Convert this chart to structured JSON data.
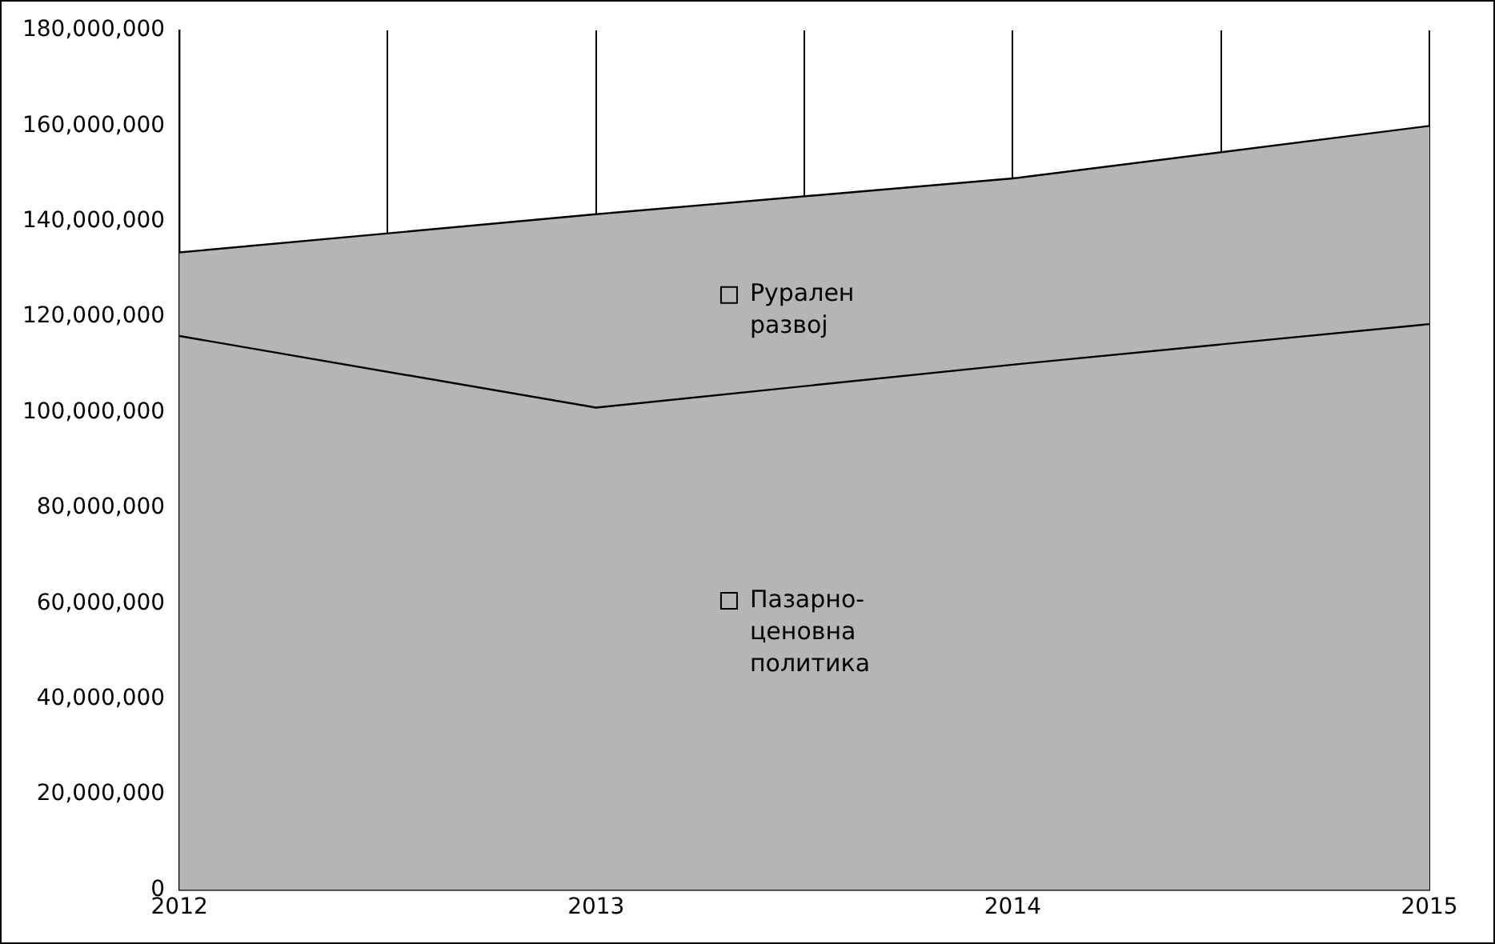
{
  "chart_data": {
    "type": "area",
    "stacked": true,
    "grid": "x",
    "legend": "center",
    "x": [
      2012,
      2013,
      2014,
      2015
    ],
    "xlim": [
      2012,
      2015
    ],
    "xticks": [
      2012,
      {
        "value": 2012.5,
        "label": null
      },
      2013,
      {
        "value": 2013.5,
        "label": null
      },
      2014,
      {
        "value": 2014.5,
        "label": null
      },
      2015
    ],
    "ylim": [
      0,
      180000000
    ],
    "yticks": [
      {
        "value": 0,
        "label": "0"
      },
      {
        "value": 20000000,
        "label": "20,000,000"
      },
      {
        "value": 40000000,
        "label": "40,000,000"
      },
      {
        "value": 60000000,
        "label": "60,000,000"
      },
      {
        "value": 80000000,
        "label": "80,000,000"
      },
      {
        "value": 100000000,
        "label": "100,000,000"
      },
      {
        "value": 120000000,
        "label": "120,000,000"
      },
      {
        "value": 140000000,
        "label": "140,000,000"
      },
      {
        "value": 160000000,
        "label": "160,000,000"
      },
      {
        "value": 180000000,
        "label": "180,000,000"
      }
    ],
    "series": [
      {
        "name": "Пазарно-ценовна политика",
        "color": "#b5b5b5",
        "values": [
          116000000,
          101000000,
          110000000,
          118500000
        ]
      },
      {
        "name": "Рурален развој",
        "color": "#b5b5b5",
        "values": [
          17500000,
          40500000,
          39000000,
          41500000
        ]
      }
    ]
  }
}
